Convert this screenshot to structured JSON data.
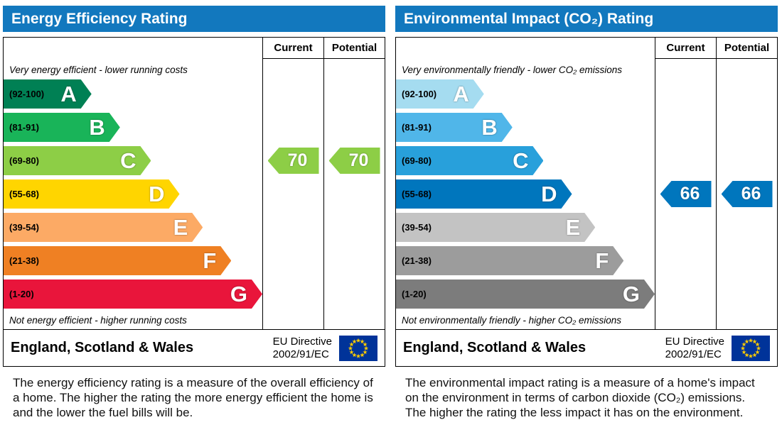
{
  "theme": {
    "header_bg": "#1278be",
    "header_text": "#ffffff",
    "border": "#000000",
    "flag_bg": "#003399",
    "flag_star": "#ffcc00"
  },
  "chart_data": [
    {
      "type": "bar",
      "title": "Energy Efficiency Rating",
      "categories": [
        "A (92-100)",
        "B (81-91)",
        "C (69-80)",
        "D (55-68)",
        "E (39-54)",
        "F (21-38)",
        "G (1-20)"
      ],
      "values": [
        34,
        45,
        57,
        68,
        77,
        88,
        100
      ],
      "current": 70,
      "potential": 70,
      "current_band": "C",
      "potential_band": "C",
      "legend_position": "none"
    },
    {
      "type": "bar",
      "title": "Environmental Impact (CO₂) Rating",
      "categories": [
        "A (92-100)",
        "B (81-91)",
        "C (69-80)",
        "D (55-68)",
        "E (39-54)",
        "F (21-38)",
        "G (1-20)"
      ],
      "values": [
        34,
        45,
        57,
        68,
        77,
        88,
        100
      ],
      "current": 66,
      "potential": 66,
      "current_band": "D",
      "potential_band": "D",
      "legend_position": "none"
    }
  ],
  "panels": [
    {
      "title": "Energy Efficiency Rating",
      "columns": {
        "current": "Current",
        "potential": "Potential"
      },
      "top_note": "Very energy efficient - lower running costs",
      "bottom_note": "Not energy efficient - higher running costs",
      "bands": [
        {
          "range": "(92-100)",
          "letter": "A",
          "color": "#008054",
          "width_pct": 34
        },
        {
          "range": "(81-91)",
          "letter": "B",
          "color": "#19b459",
          "width_pct": 45
        },
        {
          "range": "(69-80)",
          "letter": "C",
          "color": "#8dce46",
          "width_pct": 57
        },
        {
          "range": "(55-68)",
          "letter": "D",
          "color": "#ffd500",
          "width_pct": 68
        },
        {
          "range": "(39-54)",
          "letter": "E",
          "color": "#fcaa65",
          "width_pct": 77
        },
        {
          "range": "(21-38)",
          "letter": "F",
          "color": "#ef8023",
          "width_pct": 88
        },
        {
          "range": "(1-20)",
          "letter": "G",
          "color": "#e9153b",
          "width_pct": 100
        }
      ],
      "current": {
        "value": "70",
        "band_index": 2,
        "color": "#8dce46"
      },
      "potential": {
        "value": "70",
        "band_index": 2,
        "color": "#8dce46"
      },
      "footer": {
        "region": "England, Scotland & Wales",
        "directive_line1": "EU Directive",
        "directive_line2": "2002/91/EC"
      },
      "description": "The energy efficiency rating is a measure of the overall efficiency of a home. The higher the rating the more energy efficient the home is and the lower the fuel bills will be."
    },
    {
      "title": "Environmental Impact (CO₂) Rating",
      "columns": {
        "current": "Current",
        "potential": "Potential"
      },
      "top_note": "Very environmentally friendly - lower CO₂ emissions",
      "bottom_note": "Not environmentally friendly - higher CO₂ emissions",
      "bands": [
        {
          "range": "(92-100)",
          "letter": "A",
          "color": "#a5dcf0",
          "width_pct": 34
        },
        {
          "range": "(81-91)",
          "letter": "B",
          "color": "#50b6e9",
          "width_pct": 45
        },
        {
          "range": "(69-80)",
          "letter": "C",
          "color": "#28a0db",
          "width_pct": 57
        },
        {
          "range": "(55-68)",
          "letter": "D",
          "color": "#0076bd",
          "width_pct": 68
        },
        {
          "range": "(39-54)",
          "letter": "E",
          "color": "#c3c3c3",
          "width_pct": 77
        },
        {
          "range": "(21-38)",
          "letter": "F",
          "color": "#9c9c9c",
          "width_pct": 88
        },
        {
          "range": "(1-20)",
          "letter": "G",
          "color": "#7c7c7c",
          "width_pct": 100
        }
      ],
      "current": {
        "value": "66",
        "band_index": 3,
        "color": "#0076bd"
      },
      "potential": {
        "value": "66",
        "band_index": 3,
        "color": "#0076bd"
      },
      "footer": {
        "region": "England, Scotland & Wales",
        "directive_line1": "EU Directive",
        "directive_line2": "2002/91/EC"
      },
      "description": "The environmental impact rating is a measure of a home's impact on the environment in terms of carbon dioxide (CO₂) emissions. The higher the rating the less impact it has on the environment."
    }
  ]
}
